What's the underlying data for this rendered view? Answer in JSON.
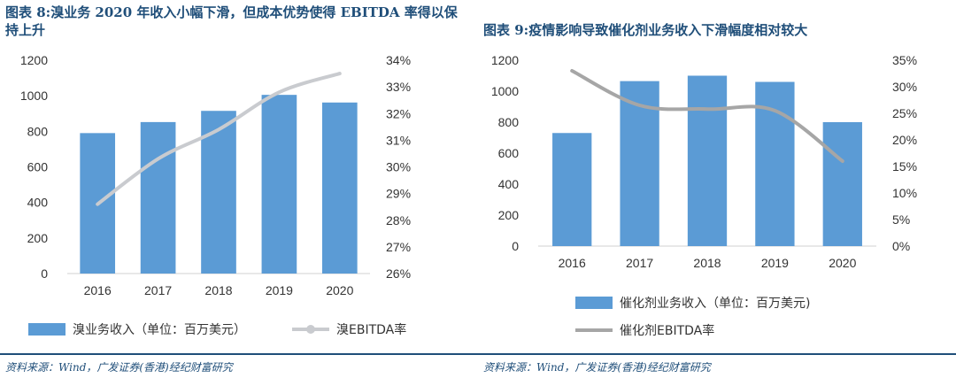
{
  "colors": {
    "bar": "#5b9bd5",
    "line_left": "#c9cbcf",
    "line_right": "#a6a6a6",
    "title": "#1f4e79"
  },
  "left_panel": {
    "title": "图表 8:溴业务 2020 年收入小幅下滑，但成本优势使得 EBITDA 率得以保持上升",
    "footer": "资料来源：Wind，广发证券(香港)经纪财富研究"
  },
  "right_panel": {
    "title": "图表 9:疫情影响导致催化剂业务收入下滑幅度相对较大",
    "footer": "资料来源：Wind，广发证券(香港)经纪财富研究"
  },
  "chart_data": [
    {
      "type": "bar",
      "categories": [
        "2016",
        "2017",
        "2018",
        "2019",
        "2020"
      ],
      "series": [
        {
          "name": "溴业务收入（单位：百万美元）",
          "axis": "left",
          "kind": "bar",
          "values": [
            790,
            852,
            915,
            1005,
            962
          ]
        },
        {
          "name": "溴EBITDA率",
          "axis": "right",
          "kind": "line",
          "values": [
            28.6,
            30.3,
            31.4,
            32.8,
            33.5
          ]
        }
      ],
      "ylim": [
        0,
        1200
      ],
      "yticks": [
        "0",
        "200",
        "400",
        "600",
        "800",
        "1000",
        "1200"
      ],
      "y2lim": [
        26,
        34
      ],
      "y2ticks": [
        "26%",
        "27%",
        "28%",
        "29%",
        "30%",
        "31%",
        "32%",
        "33%",
        "34%"
      ],
      "legend_position": "bottom"
    },
    {
      "type": "bar",
      "categories": [
        "2016",
        "2017",
        "2018",
        "2019",
        "2020"
      ],
      "series": [
        {
          "name": "催化剂业务收入（单位：百万美元)",
          "axis": "left",
          "kind": "bar",
          "values": [
            730,
            1065,
            1100,
            1060,
            800
          ]
        },
        {
          "name": "催化剂EBITDA率",
          "axis": "right",
          "kind": "line",
          "values": [
            33.0,
            26.5,
            25.8,
            25.5,
            16.0
          ]
        }
      ],
      "ylim": [
        0,
        1200
      ],
      "yticks": [
        "0",
        "200",
        "400",
        "600",
        "800",
        "1000",
        "1200"
      ],
      "y2lim": [
        0,
        35
      ],
      "y2ticks": [
        "0%",
        "5%",
        "10%",
        "15%",
        "20%",
        "25%",
        "30%",
        "35%"
      ],
      "legend_position": "bottom"
    }
  ]
}
